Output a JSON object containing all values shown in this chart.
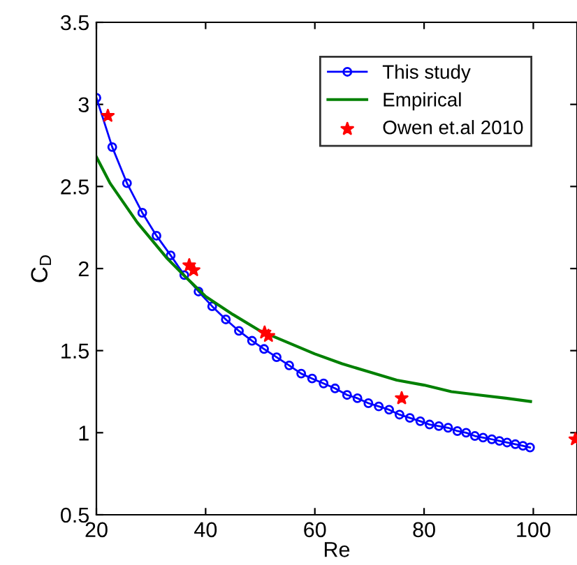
{
  "chart_data": {
    "type": "line",
    "xlabel": "Re",
    "ylabel": "C$_{D}$",
    "xlim": [
      20,
      108
    ],
    "ylim": [
      0.5,
      3.5
    ],
    "xticks": [
      20,
      40,
      60,
      80,
      100
    ],
    "yticks": [
      0.5,
      1,
      1.5,
      2,
      2.5,
      3,
      3.5
    ],
    "grid": false,
    "legend": "top right",
    "series": [
      {
        "name": "This study",
        "color": "#0000ff",
        "marker": "circle",
        "line_style": "solid",
        "x": [
          20,
          22.9,
          25.6,
          28.4,
          31.0,
          33.6,
          36.1,
          38.7,
          41.2,
          43.7,
          46.1,
          48.5,
          50.7,
          53.0,
          55.3,
          57.5,
          59.5,
          61.6,
          63.7,
          65.9,
          67.8,
          69.8,
          71.7,
          73.6,
          75.5,
          77.4,
          79.3,
          81.0,
          82.7,
          84.4,
          86.1,
          87.7,
          89.3,
          90.8,
          92.4,
          93.8,
          95.2,
          96.7,
          98.1,
          99.4
        ],
        "values": [
          3.04,
          2.74,
          2.52,
          2.34,
          2.2,
          2.08,
          1.96,
          1.86,
          1.77,
          1.69,
          1.62,
          1.56,
          1.51,
          1.46,
          1.41,
          1.36,
          1.33,
          1.3,
          1.27,
          1.23,
          1.21,
          1.18,
          1.16,
          1.14,
          1.11,
          1.09,
          1.07,
          1.05,
          1.04,
          1.03,
          1.01,
          1.0,
          0.98,
          0.97,
          0.96,
          0.95,
          0.94,
          0.93,
          0.92,
          0.91
        ]
      },
      {
        "name": "Empirical",
        "color": "#008000",
        "marker": "none",
        "line_style": "solid",
        "x": [
          20,
          22.5,
          25,
          27.5,
          30,
          33,
          36,
          40,
          45,
          50,
          55,
          60,
          65,
          70,
          75,
          80,
          85,
          90,
          95,
          99.5
        ],
        "values": [
          2.68,
          2.52,
          2.4,
          2.28,
          2.18,
          2.06,
          1.96,
          1.83,
          1.72,
          1.62,
          1.55,
          1.48,
          1.42,
          1.37,
          1.32,
          1.29,
          1.25,
          1.23,
          1.21,
          1.19
        ]
      },
      {
        "name": "Owen et.al 2010",
        "type": "scatter",
        "color": "#ff0000",
        "marker": "star",
        "x": [
          22.1,
          37.0,
          37.8,
          50.8,
          51.5,
          75.9,
          107.7
        ],
        "values": [
          2.93,
          2.02,
          1.99,
          1.61,
          1.59,
          1.21,
          0.96
        ]
      }
    ]
  }
}
